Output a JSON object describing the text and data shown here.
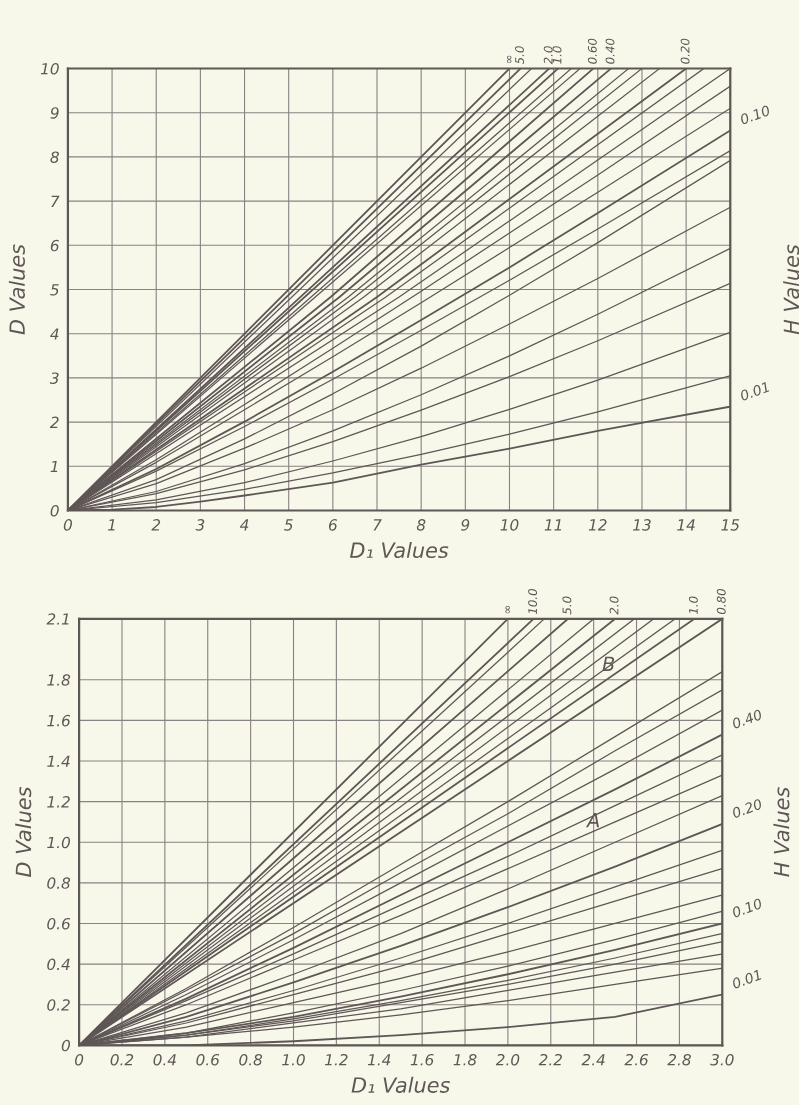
{
  "chart_data": [
    {
      "type": "line",
      "xlabel": "D₁ Values",
      "ylabel": "D Values",
      "y2label": "H Values",
      "xlim": [
        0,
        15
      ],
      "ylim": [
        0,
        10
      ],
      "xticks": [
        0,
        1,
        2,
        3,
        4,
        5,
        6,
        7,
        8,
        9,
        10,
        11,
        12,
        13,
        14,
        15
      ],
      "yticks": [
        0,
        1,
        2,
        3,
        4,
        5,
        6,
        7,
        8,
        9,
        10
      ],
      "grid": true,
      "series": [
        {
          "name": "∞",
          "color": "#5f5656",
          "x": [
            0,
            10
          ],
          "values": [
            0,
            10
          ]
        },
        {
          "name": "5.0",
          "color": "#5f5656",
          "x": [
            0,
            10.25
          ],
          "values": [
            0,
            10
          ]
        },
        {
          "color": "#5f5656",
          "x": [
            0,
            10.5
          ],
          "values": [
            0,
            10
          ]
        },
        {
          "name": "2.0",
          "color": "#5f5656",
          "x": [
            0,
            10.9
          ],
          "values": [
            0,
            10
          ]
        },
        {
          "name": "1.0",
          "color": "#5f5656",
          "x": [
            0,
            11.1
          ],
          "values": [
            0,
            10
          ]
        },
        {
          "color": "#5f5656",
          "x": [
            0,
            11.4
          ],
          "values": [
            0,
            10
          ]
        },
        {
          "color": "#5f5656",
          "x": [
            0,
            11.6
          ],
          "values": [
            0,
            10
          ]
        },
        {
          "name": "0.60",
          "color": "#5f5656",
          "x": [
            0,
            5.95,
            11.9
          ],
          "values": [
            0,
            4.83,
            10
          ]
        },
        {
          "name": "0.40",
          "color": "#5f5656",
          "x": [
            0,
            6.15,
            12.3
          ],
          "values": [
            0,
            4.83,
            10
          ]
        },
        {
          "color": "#5f5656",
          "x": [
            0,
            6.35,
            12.7
          ],
          "values": [
            0,
            4.83,
            10
          ]
        },
        {
          "color": "#5f5656",
          "x": [
            0,
            6.5,
            13.0
          ],
          "values": [
            0,
            4.83,
            10
          ]
        },
        {
          "color": "#5f5656",
          "x": [
            0,
            6.7,
            13.4
          ],
          "values": [
            0,
            4.83,
            10
          ]
        },
        {
          "name": "0.20",
          "color": "#5f5656",
          "x": [
            0,
            7.0,
            14.0
          ],
          "values": [
            0,
            4.83,
            10
          ]
        },
        {
          "color": "#5f5656",
          "x": [
            0,
            7.2,
            14.4
          ],
          "values": [
            0,
            4.83,
            10
          ]
        },
        {
          "color": "#5f5656",
          "x": [
            0,
            7.5,
            15
          ],
          "values": [
            0,
            4.83,
            10
          ]
        },
        {
          "color": "#5f5656",
          "x": [
            0,
            2,
            4,
            6,
            8,
            10,
            12,
            15
          ],
          "values": [
            0,
            1.15,
            2.4,
            3.67,
            4.96,
            6.28,
            7.59,
            9.6
          ]
        },
        {
          "color": "#5f5656",
          "x": [
            0,
            2,
            4,
            6,
            8,
            10,
            12,
            15
          ],
          "values": [
            0,
            1.09,
            2.28,
            3.48,
            4.7,
            5.95,
            7.2,
            9.1
          ]
        },
        {
          "name": "0.10",
          "color": "#5f5656",
          "x": [
            0,
            2,
            4,
            6,
            8,
            10,
            12,
            15
          ],
          "values": [
            0,
            0.94,
            2.01,
            3.14,
            4.31,
            5.5,
            6.73,
            8.6
          ]
        },
        {
          "color": "#5f5656",
          "x": [
            0,
            2,
            4,
            6,
            8,
            10,
            12,
            15
          ],
          "values": [
            0,
            0.89,
            1.9,
            2.97,
            4.08,
            5.21,
            6.37,
            8.14
          ]
        },
        {
          "color": "#5f5656",
          "x": [
            0,
            2,
            4,
            6,
            8,
            10,
            12,
            15
          ],
          "values": [
            0,
            0.7,
            1.62,
            2.64,
            3.72,
            4.87,
            6.06,
            7.92
          ]
        },
        {
          "color": "#5f5656",
          "x": [
            0,
            2,
            4,
            6,
            8,
            10,
            12,
            15
          ],
          "values": [
            0,
            0.61,
            1.41,
            2.28,
            3.22,
            4.22,
            5.25,
            6.86
          ]
        },
        {
          "color": "#5f5656",
          "x": [
            0,
            2,
            4,
            6,
            8,
            10,
            12,
            15
          ],
          "values": [
            0,
            0.43,
            1.06,
            1.8,
            2.62,
            3.5,
            4.44,
            5.93
          ]
        },
        {
          "color": "#5f5656",
          "x": [
            0,
            2,
            4,
            6,
            8,
            10,
            12,
            15
          ],
          "values": [
            0,
            0.38,
            0.92,
            1.56,
            2.27,
            3.03,
            3.84,
            5.14
          ]
        },
        {
          "color": "#5f5656",
          "x": [
            0,
            2,
            4,
            6,
            8,
            10,
            12,
            15
          ],
          "values": [
            0,
            0.24,
            0.63,
            1.12,
            1.67,
            2.29,
            2.95,
            4.03
          ]
        },
        {
          "color": "#5f5656",
          "x": [
            0,
            2,
            4,
            6,
            8,
            10,
            12,
            15
          ],
          "values": [
            0,
            0.18,
            0.48,
            0.85,
            1.27,
            1.73,
            2.23,
            3.05
          ]
        },
        {
          "name": "0.01",
          "color": "#5f5656",
          "x": [
            0,
            1,
            2,
            3,
            4,
            6,
            8,
            10,
            12,
            15
          ],
          "values": [
            0,
            0.02,
            0.08,
            0.2,
            0.34,
            0.63,
            1.04,
            1.4,
            1.8,
            2.35
          ]
        }
      ]
    },
    {
      "type": "line",
      "xlabel": "D₁ Values",
      "ylabel": "D Values",
      "y2label": "H Values",
      "xlim": [
        0,
        3
      ],
      "ylim": [
        0,
        2.1
      ],
      "xticks": [
        0,
        0.2,
        0.4,
        0.6,
        0.8,
        {
          "value": 1,
          "label": "1.0"
        },
        1.2,
        1.4,
        1.6,
        1.8,
        {
          "value": 2,
          "label": "2.0"
        },
        2.2,
        2.4,
        2.6,
        2.8,
        {
          "value": 3,
          "label": "3.0"
        }
      ],
      "yticks": [
        0,
        0.2,
        0.4,
        0.6,
        0.8,
        {
          "value": 1,
          "label": "1.0"
        },
        1.2,
        1.4,
        1.6,
        1.8,
        2.1
      ],
      "grid": true,
      "annotations": [
        {
          "text": "A",
          "x": 2.4,
          "y": 1.1
        },
        {
          "text": "B",
          "x": 2.47,
          "y": 1.87
        }
      ],
      "series": [
        {
          "name": "∞",
          "color": "#5f5656",
          "x": [
            0,
            2.0
          ],
          "values": [
            0,
            2.1
          ]
        },
        {
          "name": "10.0",
          "color": "#5f5656",
          "x": [
            0,
            2.12
          ],
          "values": [
            0,
            2.1
          ]
        },
        {
          "color": "#5f5656",
          "x": [
            0,
            2.17
          ],
          "values": [
            0,
            2.1
          ]
        },
        {
          "name": "5.0",
          "color": "#5f5656",
          "x": [
            0,
            2.28
          ],
          "values": [
            0,
            2.1
          ]
        },
        {
          "color": "#5f5656",
          "x": [
            0,
            2.4
          ],
          "values": [
            0,
            2.1
          ]
        },
        {
          "name": "2.0",
          "color": "#5f5656",
          "x": [
            0,
            2.5
          ],
          "values": [
            0,
            2.1
          ]
        },
        {
          "color": "#5f5656",
          "x": [
            0,
            2.59
          ],
          "values": [
            0,
            2.1
          ]
        },
        {
          "color": "#5f5656",
          "x": [
            0,
            2.68
          ],
          "values": [
            0,
            2.1
          ]
        },
        {
          "color": "#5f5656",
          "x": [
            0,
            2.78
          ],
          "values": [
            0,
            2.1
          ]
        },
        {
          "name": "1.0",
          "color": "#5f5656",
          "x": [
            0,
            2.87
          ],
          "values": [
            0,
            2.1
          ]
        },
        {
          "name": "0.80",
          "color": "#5f5656",
          "x": [
            0,
            3.0
          ],
          "values": [
            0,
            2.1
          ]
        },
        {
          "color": "#5f5656",
          "x": [
            0,
            0.5,
            1.0,
            1.5,
            2.0,
            2.5,
            3.0
          ],
          "values": [
            0,
            0.28,
            0.58,
            0.89,
            1.2,
            1.52,
            1.84
          ]
        },
        {
          "color": "#5f5656",
          "x": [
            0,
            0.5,
            1.0,
            1.5,
            2.0,
            2.5,
            3.0
          ],
          "values": [
            0,
            0.27,
            0.55,
            0.85,
            1.14,
            1.45,
            1.75
          ]
        },
        {
          "color": "#5f5656",
          "x": [
            0,
            0.5,
            1.0,
            1.5,
            2.0,
            2.5,
            3.0
          ],
          "values": [
            0,
            0.25,
            0.52,
            0.8,
            1.08,
            1.36,
            1.65
          ]
        },
        {
          "name": "0.40",
          "color": "#5f5656",
          "x": [
            0,
            0.5,
            1.0,
            1.5,
            2.0,
            2.5,
            3.0
          ],
          "values": [
            0,
            0.23,
            0.48,
            0.74,
            1.0,
            1.26,
            1.53
          ]
        },
        {
          "color": "#5f5656",
          "x": [
            0,
            0.5,
            1.0,
            1.5,
            2.0,
            2.5,
            3.0
          ],
          "values": [
            0,
            0.22,
            0.45,
            0.69,
            0.93,
            1.18,
            1.43
          ]
        },
        {
          "color": "#5f5656",
          "x": [
            0,
            0.5,
            1.0,
            1.5,
            2.0,
            2.5,
            3.0
          ],
          "values": [
            0,
            0.2,
            0.42,
            0.64,
            0.87,
            1.1,
            1.33
          ]
        },
        {
          "color": "#5f5656",
          "x": [
            0,
            0.5,
            1.0,
            1.5,
            2.0,
            2.5,
            3.0
          ],
          "values": [
            0,
            0.16,
            0.35,
            0.55,
            0.77,
            1.0,
            1.23
          ]
        },
        {
          "name": "0.20",
          "color": "#5f5656",
          "x": [
            0,
            0.5,
            1.0,
            1.5,
            2.0,
            2.5,
            3.0
          ],
          "values": [
            0,
            0.14,
            0.31,
            0.49,
            0.68,
            0.88,
            1.09
          ]
        },
        {
          "color": "#5f5656",
          "x": [
            0,
            0.5,
            1.0,
            1.5,
            2.0,
            2.5,
            3.0
          ],
          "values": [
            0,
            0.12,
            0.27,
            0.43,
            0.6,
            0.78,
            0.96
          ]
        },
        {
          "color": "#5f5656",
          "x": [
            0,
            0.5,
            1.0,
            1.5,
            2.0,
            2.5,
            3.0
          ],
          "values": [
            0,
            0.11,
            0.25,
            0.39,
            0.55,
            0.71,
            0.87
          ]
        },
        {
          "color": "#5f5656",
          "x": [
            0,
            0.5,
            1.0,
            1.5,
            2.0,
            2.5,
            3.0
          ],
          "values": [
            0,
            0.09,
            0.21,
            0.33,
            0.46,
            0.6,
            0.74
          ]
        },
        {
          "color": "#5f5656",
          "x": [
            0,
            0.5,
            1.0,
            1.5,
            2.0,
            2.5,
            3.0
          ],
          "values": [
            0,
            0.06,
            0.16,
            0.27,
            0.39,
            0.52,
            0.66
          ]
        },
        {
          "name": "0.10",
          "color": "#5f5656",
          "x": [
            0,
            0.5,
            1.0,
            1.5,
            2.0,
            2.5,
            3.0
          ],
          "values": [
            0,
            0.06,
            0.14,
            0.24,
            0.35,
            0.47,
            0.6
          ]
        },
        {
          "color": "#5f5656",
          "x": [
            0,
            0.5,
            1.0,
            1.5,
            2.0,
            2.5,
            3.0
          ],
          "values": [
            0,
            0.05,
            0.13,
            0.22,
            0.32,
            0.43,
            0.55
          ]
        },
        {
          "color": "#5f5656",
          "x": [
            0,
            0.5,
            1.0,
            1.5,
            2.0,
            2.5,
            3.0
          ],
          "values": [
            0,
            0.05,
            0.12,
            0.21,
            0.3,
            0.4,
            0.51
          ]
        },
        {
          "color": "#5f5656",
          "x": [
            0,
            0.5,
            1.0,
            1.5,
            2.0,
            2.5,
            3.0
          ],
          "values": [
            0,
            0.04,
            0.11,
            0.18,
            0.27,
            0.36,
            0.45
          ]
        },
        {
          "color": "#5f5656",
          "x": [
            0,
            0.5,
            1.0,
            1.5,
            2.0,
            2.5,
            3.0
          ],
          "values": [
            0,
            0.04,
            0.09,
            0.15,
            0.22,
            0.3,
            0.38
          ]
        },
        {
          "name": "0.01",
          "color": "#5f5656",
          "x": [
            0,
            0.5,
            1.0,
            1.5,
            2.0,
            2.5,
            3.0
          ],
          "values": [
            0,
            0.0,
            0.02,
            0.05,
            0.09,
            0.14,
            0.25
          ]
        }
      ]
    }
  ]
}
